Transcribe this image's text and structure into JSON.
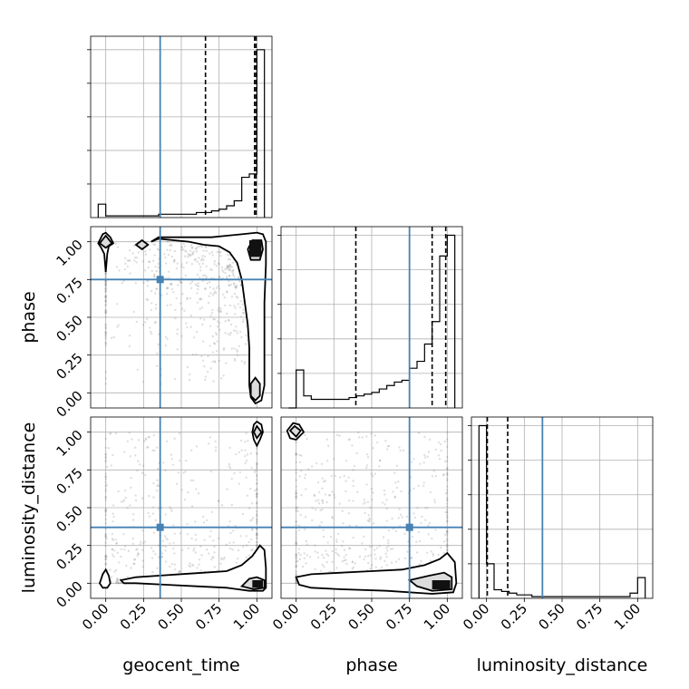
{
  "figure": {
    "background": "#ffffff",
    "truth_color": "#4682b4",
    "contour_color": "#000000",
    "sample_color": "#7f7f7f",
    "grid_color": "#b0b0b0"
  },
  "chart_data": {
    "type": "corner",
    "parameters": [
      "geocent_time",
      "phase",
      "luminosity_distance"
    ],
    "truths": {
      "geocent_time": 0.36,
      "phase": 0.75,
      "luminosity_distance": 0.37
    },
    "xlim": [
      -0.1,
      1.1
    ],
    "ticks": [
      0.0,
      0.25,
      0.5,
      0.75,
      1.0
    ],
    "tick_labels": [
      "0.00",
      "0.25",
      "0.50",
      "0.75",
      "1.00"
    ],
    "grid": true,
    "histograms": [
      {
        "parameter": "geocent_time",
        "bin_edges": [
          -0.05,
          0.0,
          0.05,
          0.1,
          0.15,
          0.2,
          0.25,
          0.3,
          0.35,
          0.4,
          0.45,
          0.5,
          0.55,
          0.6,
          0.65,
          0.7,
          0.75,
          0.8,
          0.85,
          0.9,
          0.95,
          1.0,
          1.05
        ],
        "counts": [
          0.08,
          0.01,
          0.01,
          0.01,
          0.01,
          0.01,
          0.01,
          0.01,
          0.02,
          0.02,
          0.02,
          0.02,
          0.02,
          0.03,
          0.03,
          0.04,
          0.05,
          0.07,
          0.1,
          0.24,
          0.26,
          1.0
        ],
        "ymax": 1.08,
        "quantiles": [
          0.66,
          0.985,
          0.995
        ]
      },
      {
        "parameter": "phase",
        "bin_edges": [
          -0.05,
          0.0,
          0.05,
          0.1,
          0.15,
          0.2,
          0.25,
          0.3,
          0.35,
          0.4,
          0.45,
          0.5,
          0.55,
          0.6,
          0.65,
          0.7,
          0.75,
          0.8,
          0.85,
          0.9,
          0.95,
          1.0,
          1.05
        ],
        "counts": [
          0.0,
          0.22,
          0.07,
          0.05,
          0.05,
          0.05,
          0.05,
          0.05,
          0.06,
          0.07,
          0.08,
          0.09,
          0.11,
          0.13,
          0.15,
          0.16,
          0.23,
          0.27,
          0.37,
          0.5,
          0.88,
          1.0
        ],
        "ymax": 1.05,
        "quantiles": [
          0.395,
          0.9,
          0.99
        ]
      },
      {
        "parameter": "luminosity_distance",
        "bin_edges": [
          -0.05,
          0.0,
          0.05,
          0.1,
          0.15,
          0.2,
          0.25,
          0.3,
          0.35,
          0.4,
          0.45,
          0.5,
          0.55,
          0.6,
          0.65,
          0.7,
          0.75,
          0.8,
          0.85,
          0.9,
          0.95,
          1.0,
          1.05
        ],
        "counts": [
          1.0,
          0.2,
          0.05,
          0.04,
          0.03,
          0.02,
          0.02,
          0.01,
          0.01,
          0.01,
          0.01,
          0.01,
          0.01,
          0.01,
          0.01,
          0.01,
          0.01,
          0.01,
          0.01,
          0.01,
          0.03,
          0.12
        ],
        "ymax": 1.05,
        "quantiles": [
          0.005,
          0.14
        ]
      }
    ],
    "pairs": [
      {
        "x": "geocent_time",
        "y": "phase",
        "inner_contours": [
          [
            [
              -0.04,
              0.99
            ],
            [
              0.0,
              1.04
            ],
            [
              0.04,
              0.99
            ],
            [
              0.0,
              0.96
            ]
          ],
          [
            [
              0.2,
              0.98
            ],
            [
              0.24,
              1.01
            ],
            [
              0.28,
              0.98
            ],
            [
              0.24,
              0.95
            ]
          ],
          [
            [
              0.96,
              0.06
            ],
            [
              0.99,
              0.1
            ],
            [
              1.02,
              0.06
            ],
            [
              1.02,
              -0.02
            ],
            [
              0.99,
              -0.05
            ],
            [
              0.96,
              -0.02
            ]
          ],
          [
            [
              0.94,
              0.95
            ],
            [
              0.97,
              1.01
            ],
            [
              1.03,
              1.01
            ],
            [
              1.04,
              0.95
            ],
            [
              1.02,
              0.88
            ],
            [
              0.96,
              0.88
            ]
          ]
        ],
        "outer_contours": [
          [
            [
              -0.05,
              0.99
            ],
            [
              -0.02,
              1.05
            ],
            [
              0.0,
              1.06
            ],
            [
              0.03,
              1.03
            ],
            [
              0.05,
              0.99
            ],
            [
              0.02,
              0.97
            ],
            [
              0.01,
              0.92
            ],
            [
              0.0,
              0.8
            ],
            [
              -0.01,
              0.92
            ],
            [
              -0.03,
              0.96
            ]
          ],
          [
            [
              0.3,
              1.0
            ],
            [
              0.35,
              1.02
            ],
            [
              0.45,
              1.01
            ],
            [
              0.55,
              1.0
            ],
            [
              0.65,
              0.98
            ],
            [
              0.75,
              0.97
            ],
            [
              0.82,
              0.93
            ],
            [
              0.87,
              0.86
            ],
            [
              0.9,
              0.75
            ],
            [
              0.92,
              0.6
            ],
            [
              0.94,
              0.45
            ],
            [
              0.95,
              0.3
            ],
            [
              0.95,
              0.15
            ],
            [
              0.95,
              0.05
            ],
            [
              0.96,
              -0.03
            ],
            [
              0.99,
              -0.07
            ],
            [
              1.03,
              -0.05
            ],
            [
              1.05,
              0.05
            ],
            [
              1.05,
              0.3
            ],
            [
              1.05,
              0.6
            ],
            [
              1.06,
              0.85
            ],
            [
              1.06,
              1.0
            ],
            [
              1.04,
              1.05
            ],
            [
              1.0,
              1.06
            ],
            [
              0.9,
              1.05
            ],
            [
              0.8,
              1.04
            ],
            [
              0.7,
              1.03
            ],
            [
              0.55,
              1.03
            ],
            [
              0.42,
              1.03
            ],
            [
              0.35,
              1.03
            ]
          ]
        ],
        "filled_region": [
          [
            0.95,
            1.01
          ],
          [
            1.03,
            1.01
          ],
          [
            1.03,
            0.9
          ],
          [
            0.95,
            0.9
          ]
        ]
      },
      {
        "x": "geocent_time",
        "y": "luminosity_distance",
        "inner_contours": [
          [
            [
              0.98,
              1.0
            ],
            [
              1.0,
              1.04
            ],
            [
              1.03,
              1.0
            ],
            [
              1.0,
              0.96
            ]
          ],
          [
            [
              0.95,
              0.03
            ],
            [
              1.0,
              0.04
            ],
            [
              1.05,
              0.02
            ],
            [
              1.05,
              -0.03
            ],
            [
              0.98,
              -0.04
            ],
            [
              0.9,
              -0.02
            ]
          ]
        ],
        "outer_contours": [
          [
            [
              0.97,
              1.0
            ],
            [
              0.98,
              1.05
            ],
            [
              1.0,
              1.07
            ],
            [
              1.03,
              1.05
            ],
            [
              1.04,
              1.0
            ],
            [
              1.02,
              0.95
            ],
            [
              1.0,
              0.91
            ],
            [
              0.98,
              0.95
            ]
          ],
          [
            [
              -0.04,
              0.0
            ],
            [
              -0.02,
              0.06
            ],
            [
              0.0,
              0.09
            ],
            [
              0.02,
              0.05
            ],
            [
              0.03,
              0.0
            ],
            [
              0.01,
              -0.03
            ],
            [
              -0.02,
              -0.03
            ]
          ],
          [
            [
              0.1,
              0.02
            ],
            [
              0.2,
              0.04
            ],
            [
              0.35,
              0.05
            ],
            [
              0.5,
              0.06
            ],
            [
              0.65,
              0.07
            ],
            [
              0.8,
              0.08
            ],
            [
              0.9,
              0.12
            ],
            [
              0.97,
              0.18
            ],
            [
              1.02,
              0.25
            ],
            [
              1.05,
              0.22
            ],
            [
              1.06,
              0.1
            ],
            [
              1.06,
              -0.03
            ],
            [
              1.04,
              -0.05
            ],
            [
              0.95,
              -0.05
            ],
            [
              0.8,
              -0.03
            ],
            [
              0.6,
              -0.02
            ],
            [
              0.4,
              -0.01
            ],
            [
              0.2,
              0.0
            ],
            [
              0.12,
              0.0
            ]
          ]
        ],
        "filled_region": [
          [
            0.97,
            0.02
          ],
          [
            1.04,
            0.02
          ],
          [
            1.04,
            -0.03
          ],
          [
            0.97,
            -0.03
          ]
        ]
      },
      {
        "x": "phase",
        "y": "luminosity_distance",
        "inner_contours": [
          [
            [
              -0.04,
              1.01
            ],
            [
              -0.01,
              1.04
            ],
            [
              0.03,
              1.01
            ],
            [
              0.0,
              0.97
            ]
          ],
          [
            [
              0.75,
              0.02
            ],
            [
              0.88,
              0.05
            ],
            [
              0.98,
              0.07
            ],
            [
              1.03,
              0.04
            ],
            [
              1.03,
              -0.04
            ],
            [
              0.9,
              -0.05
            ],
            [
              0.8,
              -0.02
            ]
          ]
        ],
        "outer_contours": [
          [
            [
              -0.06,
              1.01
            ],
            [
              -0.02,
              1.06
            ],
            [
              0.02,
              1.05
            ],
            [
              0.05,
              1.0
            ],
            [
              0.0,
              0.95
            ],
            [
              -0.04,
              0.96
            ]
          ],
          [
            [
              0.0,
              0.04
            ],
            [
              0.1,
              0.06
            ],
            [
              0.3,
              0.07
            ],
            [
              0.5,
              0.08
            ],
            [
              0.7,
              0.09
            ],
            [
              0.85,
              0.12
            ],
            [
              0.95,
              0.16
            ],
            [
              1.0,
              0.2
            ],
            [
              1.05,
              0.14
            ],
            [
              1.06,
              0.0
            ],
            [
              1.04,
              -0.06
            ],
            [
              0.9,
              -0.07
            ],
            [
              0.6,
              -0.05
            ],
            [
              0.3,
              -0.04
            ],
            [
              0.1,
              -0.03
            ],
            [
              0.02,
              -0.01
            ]
          ]
        ],
        "filled_region": [
          [
            0.9,
            0.02
          ],
          [
            1.02,
            0.02
          ],
          [
            1.02,
            -0.04
          ],
          [
            0.9,
            -0.04
          ]
        ]
      }
    ]
  }
}
